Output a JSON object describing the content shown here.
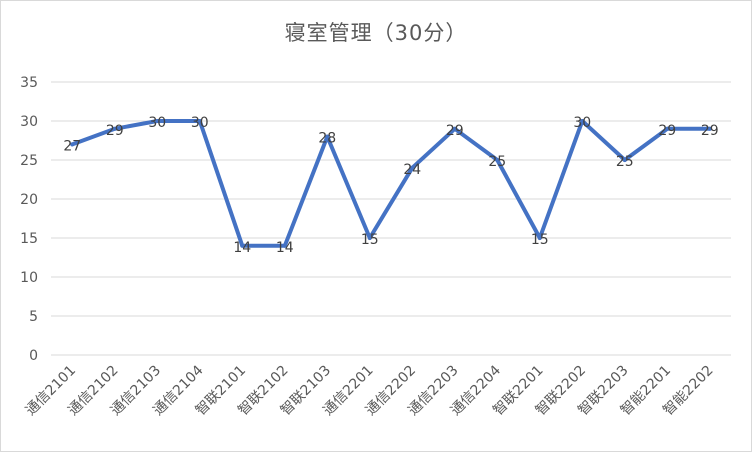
{
  "chart_data": {
    "type": "line",
    "title": "寝室管理（30分）",
    "categories": [
      "通信2101",
      "通信2102",
      "通信2103",
      "通信2104",
      "智联2101",
      "智联2102",
      "智联2103",
      "通信2201",
      "通信2202",
      "通信2203",
      "通信2204",
      "智联2201",
      "智联2202",
      "智联2203",
      "智能2201",
      "智能2202"
    ],
    "series": [
      {
        "values": [
          27,
          29,
          30,
          30,
          14,
          14,
          28,
          15,
          24,
          29,
          25,
          15,
          30,
          25,
          29,
          29
        ]
      }
    ],
    "ylim": [
      0,
      35
    ],
    "yticks": [
      0,
      5,
      10,
      15,
      20,
      25,
      30,
      35
    ],
    "grid": true,
    "data_labels": true,
    "line_color": "#4472C4",
    "xlabel": "",
    "ylabel": ""
  }
}
